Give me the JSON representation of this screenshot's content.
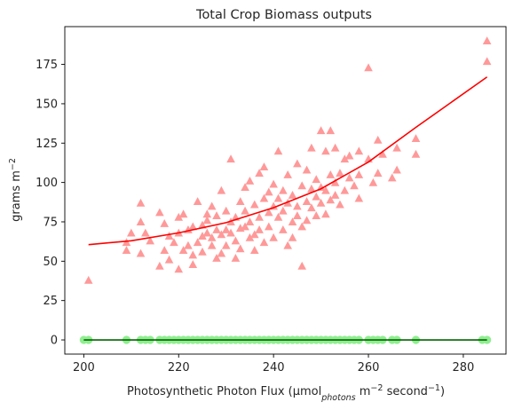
{
  "chart_data": {
    "type": "scatter",
    "title": "Total Crop Biomass outputs",
    "xlabel": {
      "main": "Photosynthetic Photon Flux (µmol",
      "sub": "photons",
      "mid": " m",
      "sup1": "−2",
      "mid2": " second",
      "sup2": "−1",
      "end": ")"
    },
    "ylabel": {
      "main": "grams m",
      "sup": "−2"
    },
    "xlim": [
      196,
      289
    ],
    "ylim": [
      -9,
      199
    ],
    "xticks": [
      200,
      220,
      240,
      260,
      280
    ],
    "yticks": [
      0,
      25,
      50,
      75,
      100,
      125,
      150,
      175
    ],
    "grid": false,
    "colors": {
      "triangles": "#ff9999",
      "trend_red": "#ff0000",
      "circles": "#90ee90",
      "trend_green": "#006400"
    },
    "series": [
      {
        "marker": "triangle",
        "points": [
          [
            201,
            38
          ],
          [
            209,
            62
          ],
          [
            209,
            57
          ],
          [
            210,
            68
          ],
          [
            212,
            87
          ],
          [
            212,
            75
          ],
          [
            212,
            55
          ],
          [
            213,
            68
          ],
          [
            214,
            63
          ],
          [
            216,
            81
          ],
          [
            216,
            47
          ],
          [
            217,
            57
          ],
          [
            217,
            74
          ],
          [
            218,
            66
          ],
          [
            218,
            51
          ],
          [
            219,
            62
          ],
          [
            220,
            78
          ],
          [
            220,
            45
          ],
          [
            220,
            68
          ],
          [
            221,
            57
          ],
          [
            221,
            80
          ],
          [
            222,
            70
          ],
          [
            222,
            60
          ],
          [
            223,
            54
          ],
          [
            223,
            48
          ],
          [
            223,
            72
          ],
          [
            224,
            88
          ],
          [
            224,
            62
          ],
          [
            225,
            73
          ],
          [
            225,
            66
          ],
          [
            225,
            56
          ],
          [
            226,
            80
          ],
          [
            226,
            68
          ],
          [
            226,
            76
          ],
          [
            227,
            60
          ],
          [
            227,
            85
          ],
          [
            227,
            65
          ],
          [
            228,
            52
          ],
          [
            228,
            70
          ],
          [
            228,
            79
          ],
          [
            229,
            67
          ],
          [
            229,
            95
          ],
          [
            229,
            55
          ],
          [
            230,
            70
          ],
          [
            230,
            82
          ],
          [
            230,
            60
          ],
          [
            231,
            115
          ],
          [
            231,
            68
          ],
          [
            231,
            75
          ],
          [
            232,
            63
          ],
          [
            232,
            78
          ],
          [
            232,
            52
          ],
          [
            233,
            71
          ],
          [
            233,
            88
          ],
          [
            233,
            58
          ],
          [
            234,
            97
          ],
          [
            234,
            72
          ],
          [
            234,
            82
          ],
          [
            235,
            65
          ],
          [
            235,
            101
          ],
          [
            235,
            75
          ],
          [
            236,
            67
          ],
          [
            236,
            86
          ],
          [
            236,
            57
          ],
          [
            237,
            106
          ],
          [
            237,
            78
          ],
          [
            237,
            70
          ],
          [
            238,
            90
          ],
          [
            238,
            62
          ],
          [
            238,
            110
          ],
          [
            239,
            81
          ],
          [
            239,
            72
          ],
          [
            239,
            94
          ],
          [
            240,
            85
          ],
          [
            240,
            65
          ],
          [
            240,
            99
          ],
          [
            241,
            120
          ],
          [
            241,
            78
          ],
          [
            241,
            90
          ],
          [
            242,
            70
          ],
          [
            242,
            95
          ],
          [
            242,
            82
          ],
          [
            243,
            60
          ],
          [
            243,
            105
          ],
          [
            243,
            87
          ],
          [
            244,
            75
          ],
          [
            244,
            92
          ],
          [
            244,
            65
          ],
          [
            245,
            112
          ],
          [
            245,
            85
          ],
          [
            245,
            79
          ],
          [
            246,
            98
          ],
          [
            246,
            72
          ],
          [
            246,
            47
          ],
          [
            247,
            88
          ],
          [
            247,
            108
          ],
          [
            247,
            76
          ],
          [
            248,
            96
          ],
          [
            248,
            84
          ],
          [
            248,
            122
          ],
          [
            249,
            91
          ],
          [
            249,
            79
          ],
          [
            249,
            102
          ],
          [
            250,
            87
          ],
          [
            250,
            133
          ],
          [
            250,
            97
          ],
          [
            251,
            95
          ],
          [
            251,
            120
          ],
          [
            251,
            80
          ],
          [
            252,
            105
          ],
          [
            252,
            89
          ],
          [
            252,
            133
          ],
          [
            253,
            100
          ],
          [
            253,
            122
          ],
          [
            253,
            92
          ],
          [
            254,
            106
          ],
          [
            254,
            86
          ],
          [
            255,
            115
          ],
          [
            255,
            95
          ],
          [
            256,
            117
          ],
          [
            256,
            103
          ],
          [
            257,
            98
          ],
          [
            258,
            120
          ],
          [
            258,
            105
          ],
          [
            258,
            90
          ],
          [
            260,
            173
          ],
          [
            260,
            115
          ],
          [
            261,
            100
          ],
          [
            262,
            127
          ],
          [
            262,
            106
          ],
          [
            263,
            118
          ],
          [
            265,
            103
          ],
          [
            266,
            122
          ],
          [
            266,
            108
          ],
          [
            270,
            128
          ],
          [
            270,
            118
          ],
          [
            285,
            190
          ],
          [
            285,
            177
          ]
        ]
      },
      {
        "marker": "circle",
        "points": [
          [
            200,
            0
          ],
          [
            201,
            0
          ],
          [
            209,
            0
          ],
          [
            212,
            0
          ],
          [
            213,
            0
          ],
          [
            214,
            0
          ],
          [
            216,
            0
          ],
          [
            217,
            0
          ],
          [
            218,
            0
          ],
          [
            219,
            0
          ],
          [
            220,
            0
          ],
          [
            221,
            0
          ],
          [
            222,
            0
          ],
          [
            223,
            0
          ],
          [
            224,
            0
          ],
          [
            225,
            0
          ],
          [
            226,
            0
          ],
          [
            227,
            0
          ],
          [
            228,
            0
          ],
          [
            229,
            0
          ],
          [
            230,
            0
          ],
          [
            231,
            0
          ],
          [
            232,
            0
          ],
          [
            233,
            0
          ],
          [
            234,
            0
          ],
          [
            235,
            0
          ],
          [
            236,
            0
          ],
          [
            237,
            0
          ],
          [
            238,
            0
          ],
          [
            239,
            0
          ],
          [
            240,
            0
          ],
          [
            241,
            0
          ],
          [
            242,
            0
          ],
          [
            243,
            0
          ],
          [
            244,
            0
          ],
          [
            245,
            0
          ],
          [
            246,
            0
          ],
          [
            247,
            0
          ],
          [
            248,
            0
          ],
          [
            249,
            0
          ],
          [
            250,
            0
          ],
          [
            251,
            0
          ],
          [
            252,
            0
          ],
          [
            253,
            0
          ],
          [
            254,
            0
          ],
          [
            255,
            0
          ],
          [
            256,
            0
          ],
          [
            257,
            0
          ],
          [
            258,
            0
          ],
          [
            260,
            0
          ],
          [
            261,
            0
          ],
          [
            262,
            0
          ],
          [
            263,
            0
          ],
          [
            265,
            0
          ],
          [
            266,
            0
          ],
          [
            270,
            0
          ],
          [
            284,
            0
          ],
          [
            285,
            0
          ]
        ]
      },
      {
        "type": "line",
        "points": [
          [
            201,
            60.5
          ],
          [
            210,
            63
          ],
          [
            220,
            68
          ],
          [
            230,
            74.5
          ],
          [
            240,
            84
          ],
          [
            250,
            96
          ],
          [
            260,
            113
          ],
          [
            270,
            135
          ],
          [
            285,
            167
          ]
        ]
      },
      {
        "type": "line",
        "points": [
          [
            200,
            0
          ],
          [
            285,
            0
          ]
        ]
      }
    ]
  }
}
